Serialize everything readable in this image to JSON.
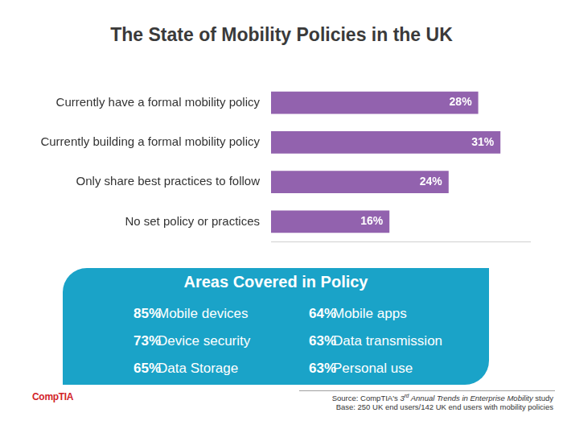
{
  "chart_data": {
    "type": "bar",
    "orientation": "horizontal",
    "title": "The State of Mobility Policies in the UK",
    "categories": [
      "Currently have a formal mobility policy",
      "Currently building a formal mobility policy",
      "Only share best practices to follow",
      "No set policy or practices"
    ],
    "values": [
      28,
      31,
      24,
      16
    ],
    "value_labels": [
      "28%",
      "31%",
      "24%",
      "16%"
    ],
    "data_labels": true,
    "color": "#9262ae",
    "xlim": [
      0,
      35
    ],
    "grid": false,
    "tick_labels": "y"
  },
  "panel": {
    "title": "Areas Covered in Policy",
    "unit": "%",
    "columns": [
      [
        {
          "value": 85,
          "text": "Mobile devices"
        },
        {
          "value": 73,
          "text": "Device security"
        },
        {
          "value": 65,
          "text": "Data Storage"
        }
      ],
      [
        {
          "value": 64,
          "text": "Mobile apps"
        },
        {
          "value": 63,
          "text": "Data transmission"
        },
        {
          "value": 63,
          "text": "Personal use"
        }
      ]
    ]
  },
  "footer": {
    "logo": "CompTIA",
    "source": {
      "prefix": "Source: CompTIA's ",
      "edition": 3,
      "edition_suffix": "rd",
      "italic": " Annual Trends in Enterprise Mobility",
      "suffix": " study"
    },
    "base": "Base: 250 UK end users/142 UK end users with mobility policies"
  }
}
